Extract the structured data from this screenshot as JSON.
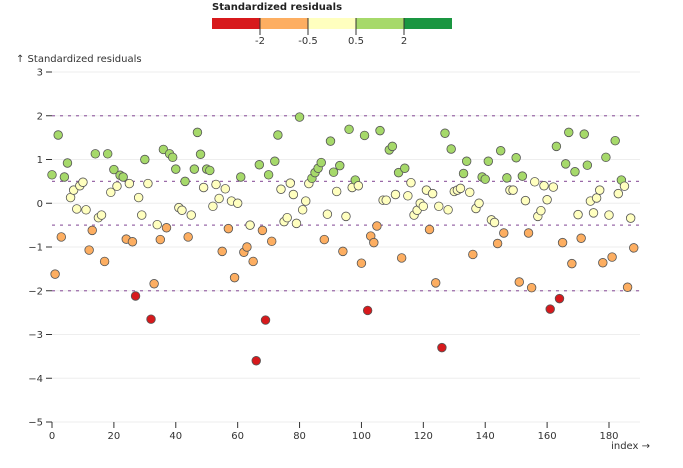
{
  "chart_data": {
    "type": "scatter",
    "title": "",
    "xlabel": "index →",
    "ylabel": "↑ Standardized residuals",
    "xlim": [
      0,
      188
    ],
    "ylim": [
      -5,
      3
    ],
    "x_ticks": [
      0,
      20,
      40,
      60,
      80,
      100,
      120,
      140,
      160,
      180
    ],
    "y_ticks": [
      3,
      2,
      1,
      0,
      -1,
      -2,
      -3,
      -4,
      -5
    ],
    "y_tick_labels": [
      "3",
      "2",
      "1",
      "0",
      "−1",
      "−2",
      "−3",
      "−4",
      "−5"
    ],
    "grid": "horizontal",
    "reference_lines": [
      2,
      0.5,
      -0.5,
      -2
    ],
    "legend": {
      "title": "Standardized residuals",
      "placement": "top-center",
      "thresholds": [
        "-2",
        "-0.5",
        "0.5",
        "2"
      ],
      "colors": [
        "#d7191c",
        "#fdae61",
        "#ffffbf",
        "#a6d96a",
        "#1a9641"
      ]
    },
    "points": [
      [
        0,
        0.65
      ],
      [
        1,
        -1.62
      ],
      [
        2,
        1.56
      ],
      [
        3,
        -0.77
      ],
      [
        4,
        0.6
      ],
      [
        5,
        0.92
      ],
      [
        6,
        0.13
      ],
      [
        7,
        0.3
      ],
      [
        8,
        -0.13
      ],
      [
        9,
        0.4
      ],
      [
        10,
        0.48
      ],
      [
        11,
        -0.15
      ],
      [
        12,
        -1.07
      ],
      [
        13,
        -0.62
      ],
      [
        14,
        1.13
      ],
      [
        15,
        -0.33
      ],
      [
        16,
        -0.27
      ],
      [
        17,
        -1.33
      ],
      [
        18,
        1.13
      ],
      [
        19,
        0.25
      ],
      [
        20,
        0.77
      ],
      [
        21,
        0.39
      ],
      [
        22,
        0.64
      ],
      [
        23,
        0.6
      ],
      [
        24,
        -0.82
      ],
      [
        25,
        0.45
      ],
      [
        26,
        -0.88
      ],
      [
        27,
        -2.12
      ],
      [
        28,
        0.13
      ],
      [
        29,
        -0.27
      ],
      [
        30,
        1.0
      ],
      [
        31,
        0.45
      ],
      [
        32,
        -2.65
      ],
      [
        33,
        -1.84
      ],
      [
        34,
        -0.49
      ],
      [
        35,
        -0.83
      ],
      [
        36,
        1.23
      ],
      [
        37,
        -0.56
      ],
      [
        38,
        1.13
      ],
      [
        39,
        1.05
      ],
      [
        40,
        0.78
      ],
      [
        41,
        -0.1
      ],
      [
        42,
        -0.16
      ],
      [
        43,
        0.5
      ],
      [
        44,
        -0.77
      ],
      [
        45,
        -0.27
      ],
      [
        46,
        0.78
      ],
      [
        47,
        1.62
      ],
      [
        48,
        1.12
      ],
      [
        49,
        0.36
      ],
      [
        50,
        0.78
      ],
      [
        51,
        0.75
      ],
      [
        52,
        -0.07
      ],
      [
        53,
        0.43
      ],
      [
        54,
        0.11
      ],
      [
        55,
        -1.1
      ],
      [
        56,
        0.33
      ],
      [
        57,
        -0.58
      ],
      [
        58,
        0.05
      ],
      [
        59,
        -1.7
      ],
      [
        60,
        0.0
      ],
      [
        61,
        0.6
      ],
      [
        62,
        -1.12
      ],
      [
        63,
        -1.0
      ],
      [
        64,
        -0.5
      ],
      [
        65,
        -1.33
      ],
      [
        66,
        -3.6
      ],
      [
        67,
        0.88
      ],
      [
        68,
        -0.62
      ],
      [
        69,
        -2.67
      ],
      [
        70,
        0.65
      ],
      [
        71,
        -0.87
      ],
      [
        72,
        0.96
      ],
      [
        73,
        1.56
      ],
      [
        74,
        0.32
      ],
      [
        75,
        -0.42
      ],
      [
        76,
        -0.33
      ],
      [
        77,
        0.46
      ],
      [
        78,
        0.2
      ],
      [
        79,
        -0.46
      ],
      [
        80,
        1.97
      ],
      [
        81,
        -0.15
      ],
      [
        82,
        0.05
      ],
      [
        83,
        0.45
      ],
      [
        84,
        0.57
      ],
      [
        85,
        0.7
      ],
      [
        86,
        0.8
      ],
      [
        87,
        0.93
      ],
      [
        88,
        -0.83
      ],
      [
        89,
        -0.25
      ],
      [
        90,
        1.42
      ],
      [
        91,
        0.71
      ],
      [
        92,
        0.27
      ],
      [
        93,
        0.86
      ],
      [
        94,
        -1.1
      ],
      [
        95,
        -0.3
      ],
      [
        96,
        1.69
      ],
      [
        97,
        0.36
      ],
      [
        98,
        0.53
      ],
      [
        99,
        0.4
      ],
      [
        100,
        -1.37
      ],
      [
        101,
        1.55
      ],
      [
        102,
        -2.45
      ],
      [
        103,
        -0.75
      ],
      [
        104,
        -0.9
      ],
      [
        105,
        -0.52
      ],
      [
        106,
        1.66
      ],
      [
        107,
        0.07
      ],
      [
        108,
        0.07
      ],
      [
        109,
        1.22
      ],
      [
        110,
        1.3
      ],
      [
        111,
        0.2
      ],
      [
        112,
        0.7
      ],
      [
        113,
        -1.25
      ],
      [
        114,
        0.8
      ],
      [
        115,
        0.17
      ],
      [
        116,
        0.47
      ],
      [
        117,
        -0.27
      ],
      [
        118,
        -0.16
      ],
      [
        119,
        0.0
      ],
      [
        120,
        -0.07
      ],
      [
        121,
        0.3
      ],
      [
        122,
        -0.6
      ],
      [
        123,
        0.22
      ],
      [
        124,
        -1.82
      ],
      [
        125,
        -0.07
      ],
      [
        126,
        -3.3
      ],
      [
        127,
        1.6
      ],
      [
        128,
        -0.15
      ],
      [
        129,
        1.24
      ],
      [
        130,
        0.27
      ],
      [
        131,
        0.3
      ],
      [
        132,
        0.34
      ],
      [
        133,
        0.68
      ],
      [
        134,
        0.96
      ],
      [
        135,
        0.25
      ],
      [
        136,
        -1.17
      ],
      [
        137,
        -0.12
      ],
      [
        138,
        0.0
      ],
      [
        139,
        0.6
      ],
      [
        140,
        0.55
      ],
      [
        141,
        0.96
      ],
      [
        142,
        -0.38
      ],
      [
        143,
        -0.44
      ],
      [
        144,
        -0.92
      ],
      [
        145,
        1.2
      ],
      [
        146,
        -0.68
      ],
      [
        147,
        0.58
      ],
      [
        148,
        0.3
      ],
      [
        149,
        0.3
      ],
      [
        150,
        1.04
      ],
      [
        151,
        -1.8
      ],
      [
        152,
        0.62
      ],
      [
        153,
        0.06
      ],
      [
        154,
        -0.68
      ],
      [
        155,
        -1.93
      ],
      [
        156,
        0.49
      ],
      [
        157,
        -0.3
      ],
      [
        158,
        -0.17
      ],
      [
        159,
        0.4
      ],
      [
        160,
        0.08
      ],
      [
        161,
        -2.42
      ],
      [
        162,
        0.37
      ],
      [
        163,
        1.3
      ],
      [
        164,
        -2.18
      ],
      [
        165,
        -0.9
      ],
      [
        166,
        0.9
      ],
      [
        167,
        1.62
      ],
      [
        168,
        -1.38
      ],
      [
        169,
        0.72
      ],
      [
        170,
        -0.26
      ],
      [
        171,
        -0.8
      ],
      [
        172,
        1.58
      ],
      [
        173,
        0.87
      ],
      [
        174,
        0.05
      ],
      [
        175,
        -0.22
      ],
      [
        176,
        0.12
      ],
      [
        177,
        0.3
      ],
      [
        178,
        -1.36
      ],
      [
        179,
        1.05
      ],
      [
        180,
        -0.27
      ],
      [
        181,
        -1.23
      ],
      [
        182,
        1.43
      ],
      [
        183,
        0.22
      ],
      [
        184,
        0.53
      ],
      [
        185,
        0.39
      ],
      [
        186,
        -1.92
      ],
      [
        187,
        -0.34
      ],
      [
        188,
        -1.02
      ]
    ]
  }
}
